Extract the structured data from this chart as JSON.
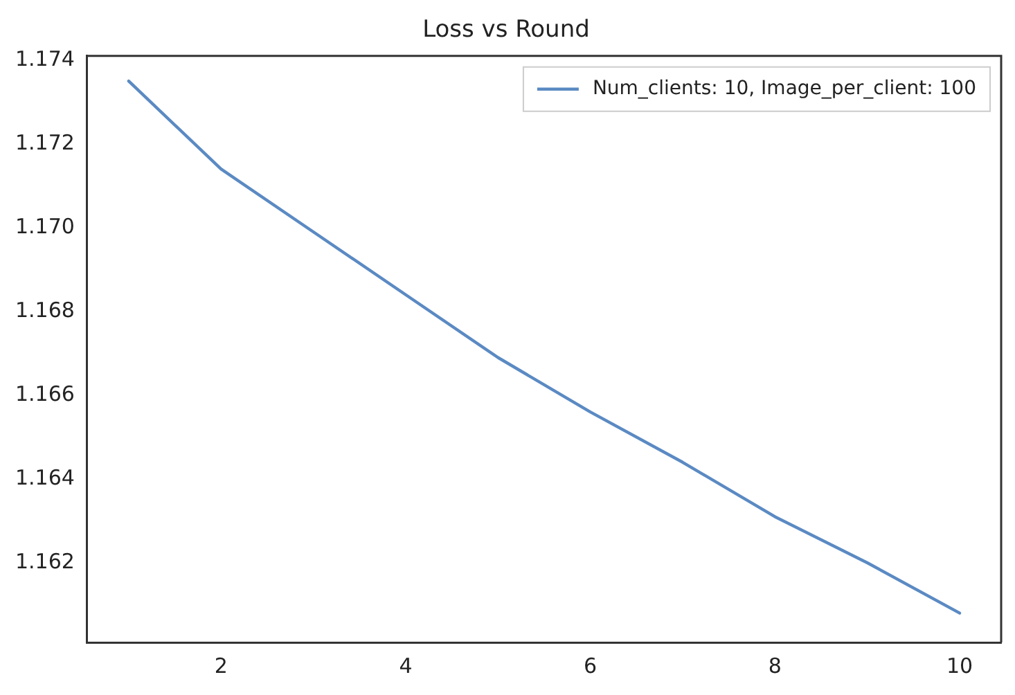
{
  "chart_data": {
    "type": "line",
    "title": "Loss vs Round",
    "x": [
      1,
      2,
      3,
      4,
      5,
      6,
      7,
      8,
      9,
      10
    ],
    "series": [
      {
        "name": "Num_clients: 10, Image_per_client: 100",
        "color": "#5b8ac3",
        "values": [
          1.1735,
          1.1714,
          1.1699,
          1.1684,
          1.1669,
          1.1656,
          1.1644,
          1.1631,
          1.162,
          1.1608
        ]
      }
    ],
    "xlim": [
      0.55,
      10.45
    ],
    "xticks": [
      2,
      4,
      6,
      8,
      10
    ],
    "ylim": [
      1.1601,
      1.1741
    ],
    "yticks": [
      1.162,
      1.164,
      1.166,
      1.168,
      {
        "value": 1.17,
        "label": "1.170"
      },
      1.172,
      1.174
    ],
    "grid": false,
    "legend": "top right",
    "marker": "none",
    "line_style": "solid"
  }
}
